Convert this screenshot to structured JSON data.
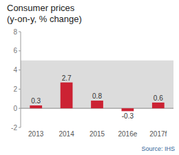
{
  "chart_data": {
    "type": "bar",
    "title": "Consumer prices\n(y-on-y, % change)",
    "categories": [
      "2013",
      "2014",
      "2015",
      "2016e",
      "2017f"
    ],
    "values": [
      0.3,
      2.7,
      0.8,
      -0.3,
      0.6
    ],
    "color": "#cc2233",
    "ylim": [
      -2,
      8
    ],
    "yticks": [
      -2,
      0,
      2,
      4,
      6,
      8
    ],
    "grid": false,
    "data_labels": true,
    "bands": [
      {
        "from": 0,
        "to": 5,
        "color": "#dcdcdc"
      }
    ],
    "annotations": [
      {
        "text": "Source: IHS",
        "color": "#336699"
      }
    ]
  }
}
